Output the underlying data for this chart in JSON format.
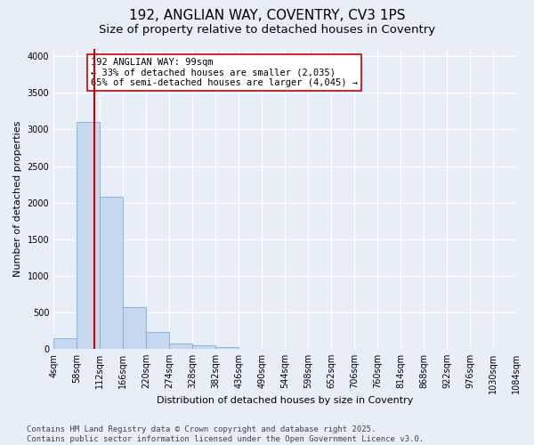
{
  "title": "192, ANGLIAN WAY, COVENTRY, CV3 1PS",
  "subtitle": "Size of property relative to detached houses in Coventry",
  "xlabel": "Distribution of detached houses by size in Coventry",
  "ylabel": "Number of detached properties",
  "bar_values": [
    150,
    3100,
    2080,
    575,
    230,
    70,
    50,
    30,
    0,
    0,
    0,
    0,
    0,
    0,
    0,
    0,
    0,
    0,
    0,
    0
  ],
  "bar_labels": [
    "4sqm",
    "58sqm",
    "112sqm",
    "166sqm",
    "220sqm",
    "274sqm",
    "328sqm",
    "382sqm",
    "436sqm",
    "490sqm",
    "544sqm",
    "598sqm",
    "652sqm",
    "706sqm",
    "760sqm",
    "814sqm",
    "868sqm",
    "922sqm",
    "976sqm",
    "1030sqm",
    "1084sqm"
  ],
  "bar_color": "#c5d8ef",
  "bar_edge_color": "#7aafd4",
  "vline_color": "#cc0000",
  "annotation_text": "192 ANGLIAN WAY: 99sqm\n← 33% of detached houses are smaller (2,035)\n65% of semi-detached houses are larger (4,045) →",
  "annotation_box_color": "#ffffff",
  "annotation_box_edge": "#cc0000",
  "ylim": [
    0,
    4100
  ],
  "yticks": [
    0,
    500,
    1000,
    1500,
    2000,
    2500,
    3000,
    3500,
    4000
  ],
  "bg_color": "#e8eef7",
  "grid_color": "#ffffff",
  "footer": "Contains HM Land Registry data © Crown copyright and database right 2025.\nContains public sector information licensed under the Open Government Licence v3.0.",
  "title_fontsize": 11,
  "subtitle_fontsize": 9.5,
  "axis_label_fontsize": 8,
  "tick_fontsize": 7,
  "annotation_fontsize": 7.5,
  "footer_fontsize": 6.5
}
